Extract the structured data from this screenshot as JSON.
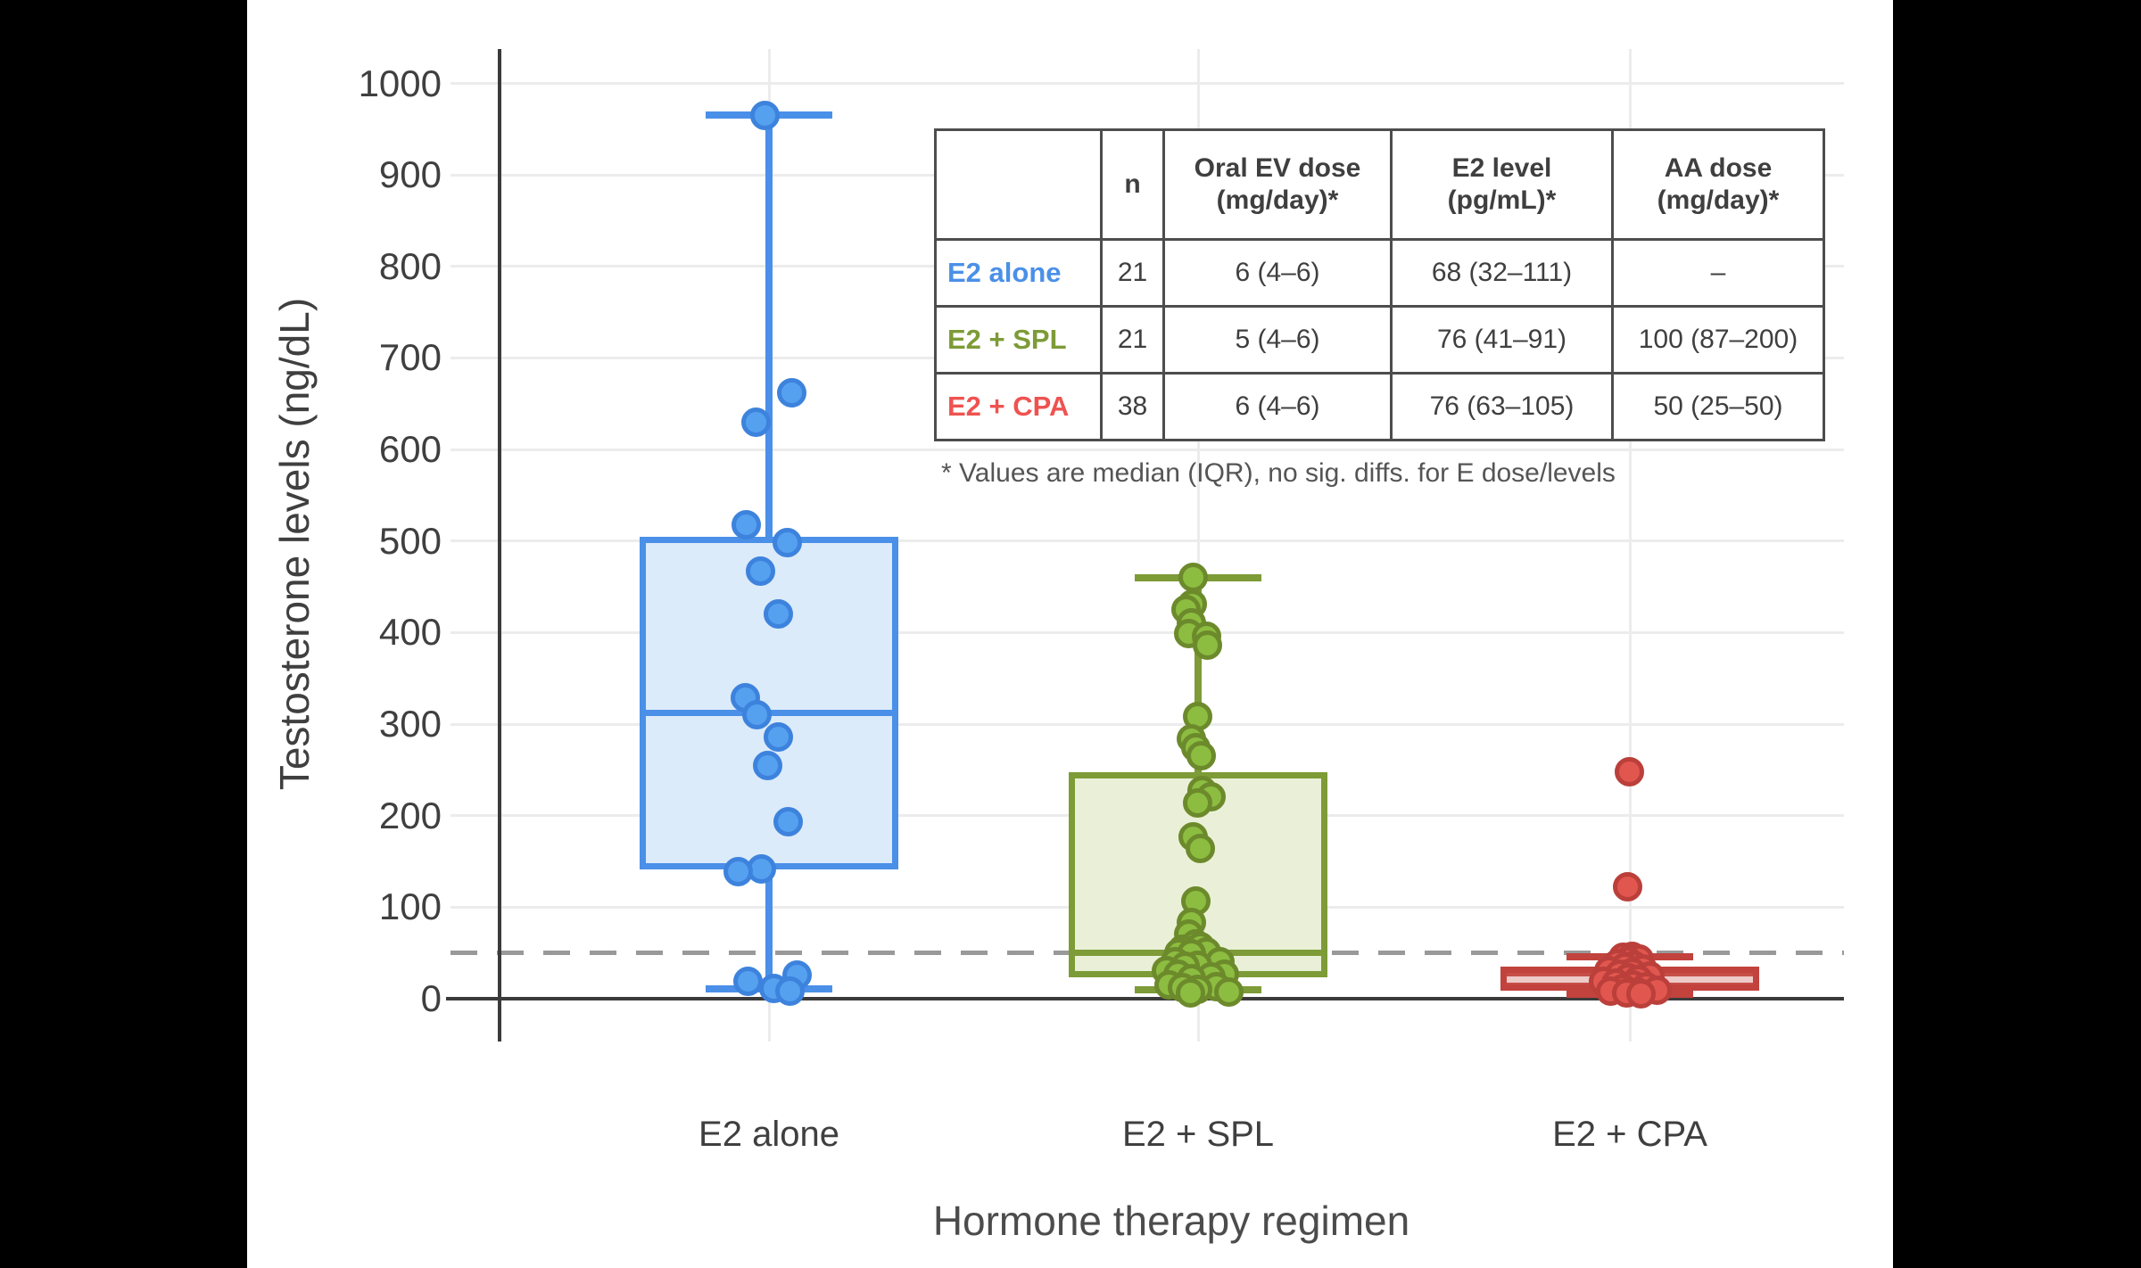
{
  "chart_data": {
    "type": "box",
    "xlabel": "Hormone therapy regimen",
    "ylabel": "Testosterone levels (ng/dL)",
    "y_ticks": [
      0,
      100,
      200,
      300,
      400,
      500,
      600,
      700,
      800,
      900,
      1000
    ],
    "ylim": [
      0,
      1040
    ],
    "grid": true,
    "legend_position": "none",
    "reference_line": {
      "value": 50,
      "style": "dashed",
      "color": "#999999"
    },
    "categories": [
      "E2 alone",
      "E2 + SPL",
      "E2 + CPA"
    ],
    "series": [
      {
        "name": "E2 alone",
        "n": 21,
        "box": {
          "whisker_low": 11,
          "q1": 141,
          "median": 312,
          "q3": 505,
          "whisker_high": 965
        },
        "colors": {
          "stroke": "#4a90e8",
          "fill": "#dcebfa",
          "median": "#4a90e8",
          "point_fill": "#55a1f0",
          "point_stroke": "#3d83dd"
        },
        "points": [
          [
            965,
            -5
          ],
          [
            662,
            25
          ],
          [
            630,
            -15
          ],
          [
            518,
            -26
          ],
          [
            498,
            20
          ],
          [
            467,
            -10
          ],
          [
            420,
            10
          ],
          [
            329,
            -27
          ],
          [
            310,
            -14
          ],
          [
            286,
            10
          ],
          [
            255,
            -2
          ],
          [
            193,
            21
          ],
          [
            142,
            -9
          ],
          [
            139,
            -35
          ],
          [
            26,
            31
          ],
          [
            19,
            -24
          ],
          [
            11,
            5
          ],
          [
            8,
            23
          ]
        ]
      },
      {
        "name": "E2 + SPL",
        "n": 21,
        "box": {
          "whisker_low": 10,
          "q1": 23,
          "median": 50,
          "q3": 247,
          "whisker_high": 460
        },
        "colors": {
          "stroke": "#7d9b37",
          "fill": "#eaf0d8",
          "median": "#7d9b37",
          "point_fill": "#8cbd41",
          "point_stroke": "#6c8a2b"
        },
        "points": [
          [
            460,
            -6
          ],
          [
            431,
            -7
          ],
          [
            425,
            -14
          ],
          [
            411,
            -8
          ],
          [
            399,
            -11
          ],
          [
            396,
            9
          ],
          [
            386,
            10
          ],
          [
            308,
            -1
          ],
          [
            284,
            -8
          ],
          [
            274,
            -3
          ],
          [
            265,
            3
          ],
          [
            227,
            4
          ],
          [
            221,
            14
          ],
          [
            214,
            -1
          ],
          [
            177,
            -6
          ],
          [
            164,
            2
          ],
          [
            107,
            -3
          ],
          [
            83,
            -8
          ],
          [
            71,
            -11
          ],
          [
            60,
            -3
          ],
          [
            57,
            2
          ],
          [
            54,
            -18
          ],
          [
            51,
            9
          ],
          [
            50,
            -22
          ],
          [
            49,
            -8
          ],
          [
            40,
            -26
          ],
          [
            40,
            24
          ],
          [
            37,
            -1
          ],
          [
            36,
            -15
          ],
          [
            31,
            -36
          ],
          [
            27,
            -23
          ],
          [
            27,
            29
          ],
          [
            24,
            14
          ],
          [
            22,
            -8
          ],
          [
            15,
            -33
          ],
          [
            13,
            20
          ],
          [
            12,
            -18
          ],
          [
            10,
            -1
          ],
          [
            7,
            34
          ],
          [
            6,
            -9
          ]
        ]
      },
      {
        "name": "E2 + CPA",
        "n": 38,
        "box": {
          "whisker_low": 5,
          "q1": 9,
          "median": 21,
          "q3": 35,
          "whisker_high": 46
        },
        "colors": {
          "stroke": "#c2423d",
          "fill": "#c64e48",
          "median": "rgba(255,255,255,0.7)",
          "point_fill": "#e1574f",
          "point_stroke": "#bb3f3a"
        },
        "points": [
          [
            248,
            -1
          ],
          [
            122,
            -3
          ],
          [
            46,
            2
          ],
          [
            45,
            -8
          ],
          [
            43,
            10
          ],
          [
            41,
            -3
          ],
          [
            38,
            -14
          ],
          [
            37,
            4
          ],
          [
            35,
            -6
          ],
          [
            33,
            14
          ],
          [
            31,
            -24
          ],
          [
            29,
            2
          ],
          [
            27,
            -12
          ],
          [
            25,
            22
          ],
          [
            23,
            -2
          ],
          [
            21,
            9
          ],
          [
            19,
            -30
          ],
          [
            17,
            -16
          ],
          [
            15,
            3
          ],
          [
            13,
            18
          ],
          [
            11,
            -8
          ],
          [
            9,
            30
          ],
          [
            8,
            -22
          ],
          [
            7,
            8
          ],
          [
            6,
            -4
          ],
          [
            5,
            12
          ]
        ]
      }
    ]
  },
  "table": {
    "headers": [
      "",
      "n",
      "Oral EV dose\n(mg/day)*",
      "E2 level\n(pg/mL)*",
      "AA dose\n(mg/day)*"
    ],
    "rows": [
      {
        "label": "E2 alone",
        "label_color": "#4a90e8",
        "cells": [
          "21",
          "6 (4–6)",
          "68 (32–111)",
          "–"
        ]
      },
      {
        "label": "E2 + SPL",
        "label_color": "#7d9b37",
        "cells": [
          "21",
          "5 (4–6)",
          "76 (41–91)",
          "100 (87–200)"
        ]
      },
      {
        "label": "E2 + CPA",
        "label_color": "#ee5350",
        "cells": [
          "38",
          "6 (4–6)",
          "76 (63–105)",
          "50 (25–50)"
        ]
      }
    ]
  },
  "footnote": "* Values are median (IQR), no sig. diffs. for E dose/levels",
  "style": {
    "grid_color": "#ececec",
    "axis_color": "#3b3b3b",
    "dashed_color": "#999999",
    "background": "#ffffff",
    "letterbox": "#000000"
  }
}
